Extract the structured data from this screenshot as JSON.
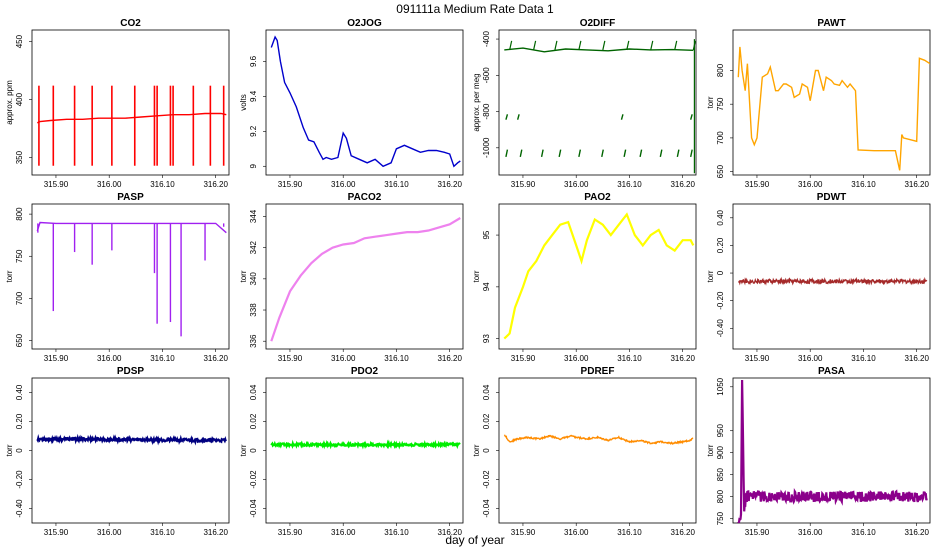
{
  "figure": {
    "title": "091111a   Medium Rate Data 1",
    "xlabel": "day of year"
  },
  "x_ticks": [
    "315.90",
    "316.00",
    "316.10",
    "316.20"
  ],
  "x_tick_values": [
    315.9,
    316.0,
    316.1,
    316.2
  ],
  "x_range": [
    315.855,
    316.225
  ],
  "chart_data": [
    {
      "type": "line",
      "title": "CO2",
      "ylabel": "approx. ppm",
      "color": "#ff0000",
      "ylim": [
        335,
        460
      ],
      "yticks": [
        350,
        400,
        450
      ],
      "x": [
        315.865,
        315.87,
        315.89,
        315.92,
        315.95,
        315.98,
        316.0,
        316.03,
        316.06,
        316.09,
        316.12,
        316.15,
        316.18,
        316.21,
        316.22
      ],
      "y": [
        380,
        381,
        382,
        383,
        383,
        384,
        384,
        384,
        385,
        386,
        387,
        387,
        388,
        388,
        387
      ],
      "spikes_x": [
        315.868,
        315.895,
        315.935,
        315.968,
        316.005,
        316.048,
        316.085,
        316.09,
        316.115,
        316.12,
        316.158,
        316.19,
        316.215
      ],
      "spike_low": 343,
      "spike_high": 412
    },
    {
      "type": "line",
      "title": "O2JOG",
      "ylabel": "volts",
      "color": "#0000cc",
      "ylim": [
        8.95,
        9.78
      ],
      "yticks": [
        9.0,
        9.2,
        9.4,
        9.6
      ],
      "x": [
        315.865,
        315.872,
        315.876,
        315.882,
        315.89,
        315.9,
        315.912,
        315.925,
        315.935,
        315.945,
        315.955,
        315.962,
        315.968,
        315.978,
        315.99,
        316.0,
        316.006,
        316.015,
        316.03,
        316.045,
        316.06,
        316.075,
        316.09,
        316.1,
        316.115,
        316.13,
        316.145,
        316.16,
        316.175,
        316.19,
        316.2,
        316.208,
        316.215,
        316.22
      ],
      "y": [
        9.68,
        9.74,
        9.72,
        9.6,
        9.48,
        9.42,
        9.34,
        9.22,
        9.15,
        9.14,
        9.08,
        9.04,
        9.05,
        9.04,
        9.05,
        9.19,
        9.16,
        9.06,
        9.04,
        9.02,
        9.04,
        9.0,
        9.02,
        9.1,
        9.12,
        9.1,
        9.08,
        9.09,
        9.09,
        9.08,
        9.07,
        9.0,
        9.02,
        9.03
      ]
    },
    {
      "type": "line",
      "title": "O2DIFF",
      "ylabel": "approx. per meg",
      "color": "#006400",
      "ylim": [
        -1150,
        -350
      ],
      "yticks": [
        -1000,
        -800,
        -600,
        -400
      ],
      "x": [
        315.865,
        315.9,
        315.94,
        315.98,
        316.02,
        316.06,
        316.1,
        316.14,
        316.18,
        316.22
      ],
      "y": [
        -460,
        -450,
        -470,
        -455,
        -460,
        -465,
        -455,
        -460,
        -458,
        -462
      ],
      "upper_spikes_x": [
        315.875,
        315.92,
        315.96,
        316.005,
        316.05,
        316.095,
        316.14,
        316.185,
        316.22
      ],
      "low_band_x": [
        315.868,
        315.895,
        315.935,
        315.968,
        316.005,
        316.048,
        316.09,
        316.12,
        316.158,
        316.19,
        316.215
      ],
      "mid_band_x": [
        315.868,
        315.89,
        316.085,
        316.215
      ],
      "low_band_y": -1030,
      "mid_band_y": -830
    },
    {
      "type": "line",
      "title": "PAWT",
      "ylabel": "torr",
      "color": "#ffa500",
      "ylim": [
        645,
        860
      ],
      "yticks": [
        650,
        700,
        750,
        800
      ],
      "x": [
        315.865,
        315.868,
        315.872,
        315.878,
        315.882,
        315.89,
        315.895,
        315.9,
        315.91,
        315.92,
        315.925,
        315.935,
        315.94,
        315.95,
        315.955,
        315.965,
        315.97,
        315.98,
        315.985,
        315.995,
        316.0,
        316.01,
        316.015,
        316.025,
        316.03,
        316.04,
        316.045,
        316.055,
        316.06,
        316.07,
        316.075,
        316.085,
        316.09,
        316.12,
        316.16,
        316.168,
        316.172,
        316.175,
        316.2,
        316.205,
        316.215,
        316.225
      ],
      "y": [
        790,
        835,
        800,
        770,
        810,
        700,
        690,
        700,
        790,
        795,
        805,
        770,
        770,
        780,
        780,
        775,
        760,
        765,
        780,
        775,
        755,
        800,
        800,
        770,
        790,
        785,
        780,
        778,
        785,
        775,
        780,
        770,
        682,
        681,
        681,
        652,
        705,
        700,
        695,
        818,
        815,
        810
      ]
    },
    {
      "type": "line",
      "title": "PASP",
      "ylabel": "torr",
      "color": "#a020f0",
      "ylim": [
        640,
        812
      ],
      "yticks": [
        650,
        700,
        750,
        800
      ],
      "x": [
        315.865,
        315.87,
        315.9,
        315.95,
        316.0,
        316.05,
        316.1,
        316.15,
        316.2,
        316.22
      ],
      "y": [
        780,
        790,
        789,
        789,
        789,
        789,
        789,
        789,
        789,
        778
      ],
      "dips": [
        [
          315.866,
          778
        ],
        [
          315.895,
          685
        ],
        [
          315.935,
          755
        ],
        [
          315.968,
          740
        ],
        [
          316.005,
          757
        ],
        [
          316.085,
          730
        ],
        [
          316.09,
          670
        ],
        [
          316.115,
          672
        ],
        [
          316.135,
          655
        ],
        [
          316.18,
          745
        ],
        [
          316.215,
          785
        ]
      ]
    },
    {
      "type": "line",
      "title": "PACO2",
      "ylabel": "torr",
      "color": "#ee82ee",
      "ylim": [
        335.5,
        344.8
      ],
      "yticks": [
        336,
        338,
        340,
        342,
        344
      ],
      "x": [
        315.865,
        315.88,
        315.9,
        315.92,
        315.94,
        315.96,
        315.98,
        316.0,
        316.02,
        316.04,
        316.06,
        316.08,
        316.1,
        316.12,
        316.14,
        316.16,
        316.18,
        316.2,
        316.22
      ],
      "y": [
        336.0,
        337.5,
        339.2,
        340.2,
        341.0,
        341.6,
        342.0,
        342.2,
        342.3,
        342.6,
        342.7,
        342.8,
        342.9,
        343.0,
        343.0,
        343.1,
        343.3,
        343.5,
        343.9
      ]
    },
    {
      "type": "line",
      "title": "PAO2",
      "ylabel": "torr",
      "color": "#ffff00",
      "ylim": [
        92.8,
        95.6
      ],
      "yticks": [
        93.0,
        94.0,
        95.0
      ],
      "x": [
        315.865,
        315.875,
        315.885,
        315.9,
        315.91,
        315.925,
        315.94,
        315.955,
        315.97,
        315.985,
        316.0,
        316.01,
        316.02,
        316.035,
        316.05,
        316.065,
        316.08,
        316.095,
        316.11,
        316.125,
        316.14,
        316.155,
        316.17,
        316.185,
        316.2,
        316.215,
        316.22
      ],
      "y": [
        93.0,
        93.1,
        93.6,
        94.0,
        94.3,
        94.5,
        94.8,
        95.0,
        95.2,
        95.25,
        94.8,
        94.5,
        94.9,
        95.3,
        95.2,
        95.0,
        95.2,
        95.4,
        95.0,
        94.8,
        95.0,
        95.1,
        94.8,
        94.7,
        94.9,
        94.9,
        94.8
      ]
    },
    {
      "type": "line",
      "title": "PDWT",
      "ylabel": "torr",
      "color": "#a52a2a",
      "ylim": [
        -0.55,
        0.5
      ],
      "yticks": [
        -0.4,
        -0.2,
        0.0,
        0.2,
        0.4
      ],
      "x": [
        315.865,
        316.22
      ],
      "y": [
        -0.06,
        -0.06
      ],
      "noise": 0.015
    },
    {
      "type": "line",
      "title": "PDSP",
      "ylabel": "torr",
      "color": "#000080",
      "ylim": [
        -0.5,
        0.5
      ],
      "yticks": [
        -0.4,
        -0.2,
        0.0,
        0.2,
        0.4
      ],
      "x": [
        315.865,
        316.22
      ],
      "y": [
        0.08,
        0.07
      ],
      "noise": 0.01
    },
    {
      "type": "line",
      "title": "PDO2",
      "ylabel": "torr",
      "color": "#00ee00",
      "ylim": [
        -0.05,
        0.05
      ],
      "yticks": [
        -0.04,
        -0.02,
        0.0,
        0.02,
        0.04
      ],
      "x": [
        315.865,
        316.22
      ],
      "y": [
        0.004,
        0.004
      ],
      "noise": 0.0008
    },
    {
      "type": "line",
      "title": "PDREF",
      "ylabel": "torr",
      "color": "#ff8c00",
      "ylim": [
        -0.05,
        0.05
      ],
      "yticks": [
        -0.04,
        -0.02,
        0.0,
        0.02,
        0.04
      ],
      "x": [
        315.865,
        315.875,
        315.89,
        315.91,
        315.93,
        315.95,
        315.97,
        315.99,
        316.0,
        316.02,
        316.04,
        316.06,
        316.08,
        316.1,
        316.12,
        316.14,
        316.16,
        316.18,
        316.2,
        316.215,
        316.22
      ],
      "y": [
        0.011,
        0.006,
        0.008,
        0.009,
        0.008,
        0.01,
        0.008,
        0.01,
        0.009,
        0.008,
        0.009,
        0.007,
        0.009,
        0.006,
        0.007,
        0.005,
        0.006,
        0.005,
        0.006,
        0.007,
        0.009
      ],
      "noise": 0.0005
    },
    {
      "type": "line",
      "title": "PASA",
      "ylabel": "torr",
      "color": "#8b008b",
      "ylim": [
        740,
        1070
      ],
      "yticks": [
        750,
        800,
        850,
        900,
        950,
        1050
      ],
      "x": [
        315.865,
        315.87,
        315.872,
        315.876,
        315.88,
        316.22
      ],
      "y": [
        750,
        750,
        1065,
        760,
        800,
        800
      ],
      "noise": 12
    }
  ]
}
